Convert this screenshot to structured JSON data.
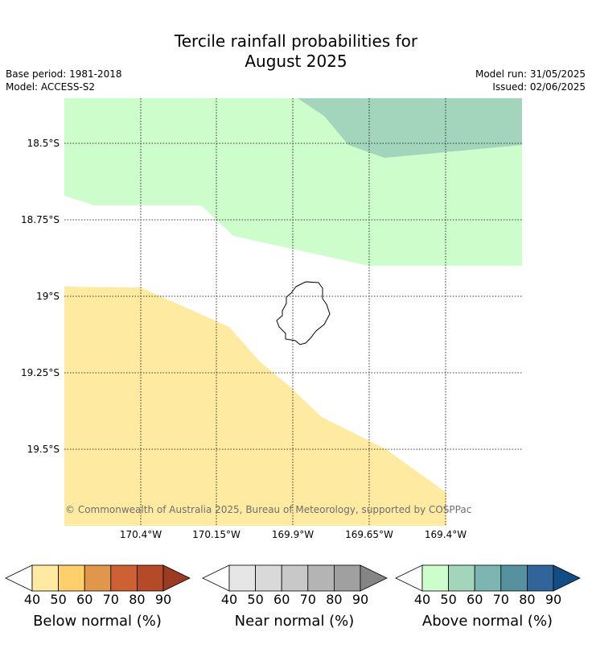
{
  "title_line1": "Tercile rainfall probabilities for",
  "title_line2": "August 2025",
  "meta": {
    "base_period": "Base period: 1981-2018",
    "model": "Model: ACCESS-S2",
    "model_run": "Model run: 31/05/2025",
    "issued": "Issued: 02/06/2025"
  },
  "map": {
    "lat_labels": [
      "18.5°S",
      "18.75°S",
      "19°S",
      "19.25°S",
      "19.5°S"
    ],
    "lon_labels": [
      "170.4°W",
      "170.15°W",
      "169.9°W",
      "169.65°W",
      "169.4°W"
    ],
    "copyright": "© Commonwealth of Australia 2025, Bureau of Meteorology, supported by COSPPac",
    "colors": {
      "below_40_50": "#ffeaa1",
      "above_40_50": "#ccfdcb",
      "above_50_60": "#a3d5bc"
    }
  },
  "colorbars": [
    {
      "name": "below",
      "title": "Below normal (%)",
      "ticks": [
        "40",
        "50",
        "60",
        "70",
        "80",
        "90"
      ],
      "colors": [
        "#ffeaa1",
        "#fecf6b",
        "#e1974b",
        "#cd6133",
        "#b44a27",
        "#9b3b21"
      ]
    },
    {
      "name": "near",
      "title": "Near normal (%)",
      "ticks": [
        "40",
        "50",
        "60",
        "70",
        "80",
        "90"
      ],
      "colors": [
        "#e6e6e6",
        "#d9d9d9",
        "#c8c8c8",
        "#b4b4b4",
        "#a0a0a0",
        "#858585"
      ]
    },
    {
      "name": "above",
      "title": "Above normal (%)",
      "ticks": [
        "40",
        "50",
        "60",
        "70",
        "80",
        "90"
      ],
      "colors": [
        "#ccfdcb",
        "#a3d5bc",
        "#7cb5b1",
        "#5691a0",
        "#31659a",
        "#124e86"
      ]
    }
  ]
}
